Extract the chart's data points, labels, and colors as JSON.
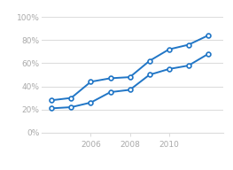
{
  "series1_x": [
    2004,
    2005,
    2006,
    2007,
    2008,
    2009,
    2010,
    2011,
    2012
  ],
  "series1_y": [
    0.28,
    0.3,
    0.44,
    0.47,
    0.48,
    0.62,
    0.72,
    0.76,
    0.84
  ],
  "series2_x": [
    2004,
    2005,
    2006,
    2007,
    2008,
    2009,
    2010,
    2011,
    2012
  ],
  "series2_y": [
    0.21,
    0.22,
    0.26,
    0.35,
    0.37,
    0.5,
    0.55,
    0.58,
    0.68
  ],
  "line_color": "#2176c6",
  "marker_facecolor": "#ffffff",
  "background_color": "#ffffff",
  "grid_color": "#dddddd",
  "tick_label_color": "#aaaaaa",
  "ylim": [
    0,
    1.0
  ],
  "xlim": [
    2003.5,
    2012.8
  ],
  "xticks": [
    2006,
    2008,
    2010
  ],
  "yticks": [
    0.0,
    0.2,
    0.4,
    0.6,
    0.8,
    1.0
  ],
  "ytick_labels": [
    "0%",
    "20%",
    "40%",
    "60%",
    "80%",
    "100%"
  ]
}
